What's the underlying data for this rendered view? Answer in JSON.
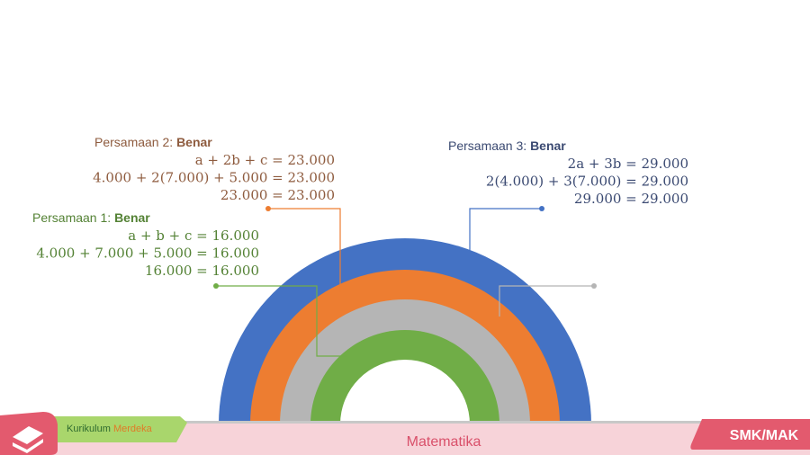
{
  "callouts": [
    {
      "label": "Persamaan 2:",
      "status": "Benar",
      "lines": [
        "a + 2b + c = 23.000",
        "4.000 + 2(7.000) + 5.000 = 23.000",
        "23.000 = 23.000"
      ]
    },
    {
      "label": "Persamaan 1:",
      "status": "Benar",
      "lines": [
        "a + b + c = 16.000",
        "4.000 + 7.000 + 5.000 = 16.000",
        "16.000 = 16.000"
      ]
    },
    {
      "label": "Persamaan 3:",
      "status": "Benar",
      "lines": [
        "2a + 3b = 29.000",
        "2(4.000) + 3(7.000) = 29.000",
        "29.000 = 29.000"
      ]
    }
  ],
  "footer": {
    "curriculum_1": "Kurikulum",
    "curriculum_2": "Merdeka",
    "subject": "Matematika",
    "level": "SMK/MAK"
  }
}
